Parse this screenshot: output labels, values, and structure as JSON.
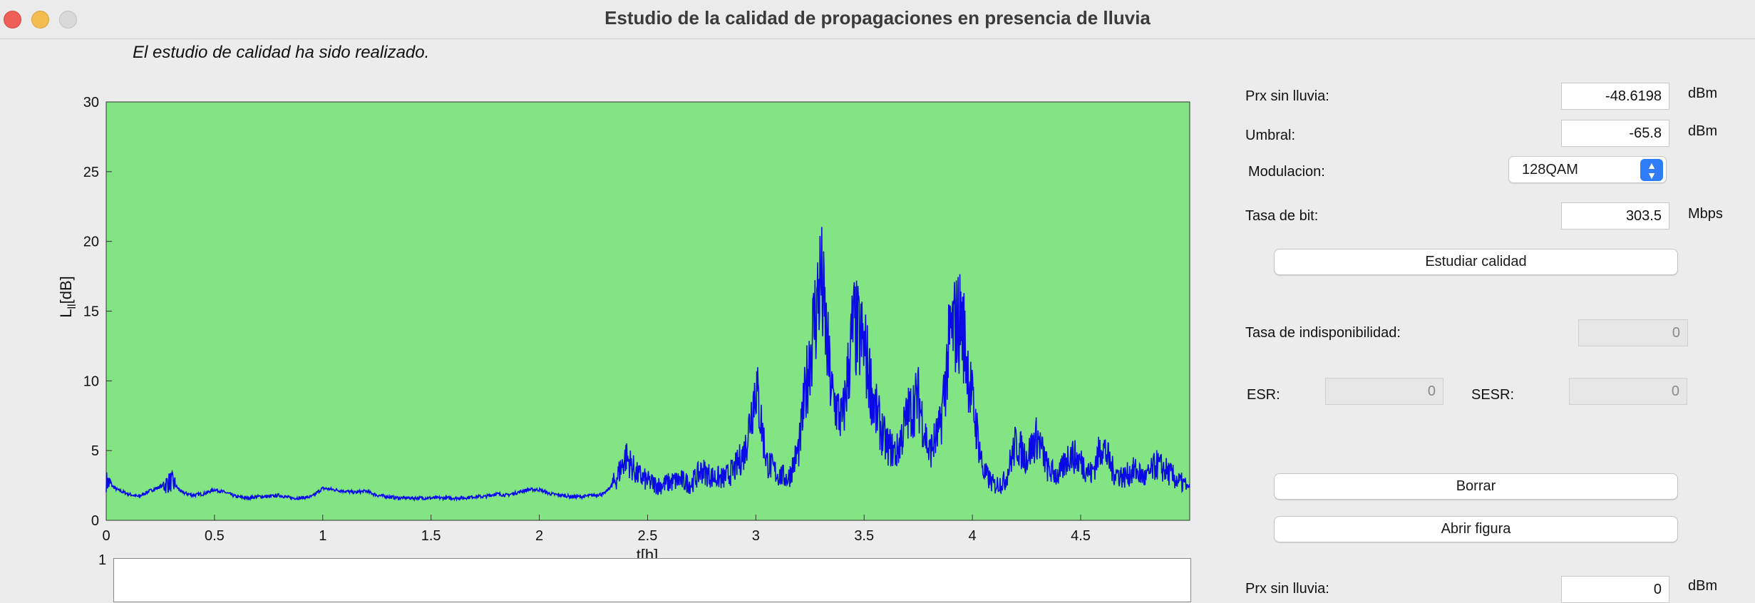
{
  "window": {
    "title": "Estudio de la calidad de propagaciones en presencia de lluvia"
  },
  "status_text": "El estudio de calidad ha sido realizado.",
  "form": {
    "prx_label": "Prx sin lluvia:",
    "prx_value": "-48.6198",
    "prx_unit": "dBm",
    "umbral_label": "Umbral:",
    "umbral_value": "-65.8",
    "umbral_unit": "dBm",
    "modulacion_label": "Modulacion:",
    "modulacion_value": "128QAM",
    "tasa_bit_label": "Tasa de bit:",
    "tasa_bit_value": "303.5",
    "tasa_bit_unit": "Mbps",
    "estudiar_button": "Estudiar calidad",
    "indisp_label": "Tasa de indisponibilidad:",
    "indisp_value": "0",
    "esr_label": "ESR:",
    "esr_value": "0",
    "sesr_label": "SESR:",
    "sesr_value": "0",
    "borrar_button": "Borrar",
    "abrir_button": "Abrir figura",
    "prx2_label": "Prx sin lluvia:",
    "prx2_value": "0",
    "prx2_unit": "dBm"
  },
  "chart_data": {
    "type": "line",
    "xlabel": "t[h]",
    "ylabel": "L_ll[dB]",
    "xlim": [
      0,
      5
    ],
    "ylim": [
      0,
      30
    ],
    "xticks": [
      "0",
      "0.5",
      "1",
      "1.5",
      "2",
      "2.5",
      "3",
      "3.5",
      "4",
      "4.5"
    ],
    "yticks": [
      "0",
      "5",
      "10",
      "15",
      "20",
      "25",
      "30"
    ],
    "background_color": "#82e482",
    "line_color": "#0a0ae6",
    "series": [
      {
        "x": [
          0,
          0.05,
          0.1,
          0.15,
          0.2,
          0.25,
          0.3,
          0.35,
          0.4,
          0.45,
          0.5,
          0.55,
          0.6,
          0.65,
          0.7,
          0.75,
          0.8,
          0.85,
          0.9,
          0.95,
          1.0,
          1.05,
          1.1,
          1.15,
          1.2,
          1.25,
          1.3,
          1.35,
          1.4,
          1.45,
          1.5,
          1.55,
          1.6,
          1.65,
          1.7,
          1.75,
          1.8,
          1.85,
          1.9,
          1.95,
          2.0,
          2.05,
          2.1,
          2.15,
          2.2,
          2.25,
          2.3,
          2.35,
          2.4,
          2.45,
          2.5,
          2.55,
          2.6,
          2.65,
          2.7,
          2.75,
          2.8,
          2.85,
          2.9,
          2.95,
          3.0,
          3.05,
          3.1,
          3.15,
          3.2,
          3.25,
          3.3,
          3.35,
          3.4,
          3.45,
          3.5,
          3.55,
          3.6,
          3.65,
          3.7,
          3.75,
          3.8,
          3.85,
          3.9,
          3.95,
          4.0,
          4.05,
          4.1,
          4.15,
          4.2,
          4.25,
          4.3,
          4.35,
          4.4,
          4.45,
          4.5,
          4.55,
          4.6,
          4.65,
          4.7,
          4.75,
          4.8,
          4.85,
          4.9,
          4.95,
          5.0
        ],
        "values": [
          2.8,
          2.2,
          1.9,
          1.7,
          2.1,
          2.4,
          2.8,
          2.0,
          1.8,
          1.9,
          2.2,
          2.0,
          1.7,
          1.6,
          1.7,
          1.7,
          1.8,
          1.6,
          1.6,
          1.7,
          2.3,
          2.2,
          2.1,
          2.0,
          2.1,
          1.8,
          1.7,
          1.6,
          1.6,
          1.6,
          1.6,
          1.6,
          1.6,
          1.6,
          1.7,
          1.7,
          1.9,
          1.8,
          2.0,
          2.2,
          2.2,
          1.9,
          1.8,
          1.7,
          1.7,
          1.8,
          1.9,
          2.8,
          4.6,
          3.3,
          2.8,
          2.5,
          2.7,
          2.9,
          2.6,
          3.6,
          3.1,
          3.0,
          3.6,
          5.0,
          9.8,
          4.2,
          3.3,
          3.0,
          5.2,
          12.0,
          17.5,
          9.0,
          7.0,
          14.0,
          12.5,
          8.0,
          5.5,
          4.8,
          7.5,
          8.8,
          4.8,
          6.5,
          13.5,
          14.5,
          8.5,
          3.5,
          2.5,
          2.8,
          5.5,
          4.5,
          6.0,
          3.6,
          3.2,
          4.8,
          4.2,
          3.3,
          5.5,
          3.5,
          3.1,
          3.6,
          3.0,
          4.0,
          3.5,
          2.8,
          2.4
        ]
      }
    ]
  }
}
